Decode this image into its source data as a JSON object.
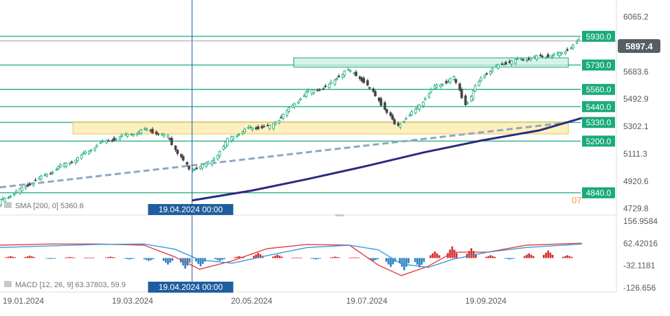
{
  "chart_data": [
    {
      "type": "line",
      "title": "",
      "y_axis": {
        "ticks": [
          "6065.2",
          "5683.6",
          "5492.9",
          "5302.1",
          "5111.3",
          "4920.6",
          "4729.8"
        ],
        "tick_values": [
          6065.2,
          5683.6,
          5492.9,
          5302.1,
          5111.3,
          4920.6,
          4729.8
        ],
        "ylim": [
          4690,
          6135
        ]
      },
      "x_axis": {
        "ticks": [
          "19.01.2024",
          "19.03.2024",
          "20.05.2024",
          "19.07.2024",
          "19.09.2024"
        ],
        "xlim": [
          "2024-01-10",
          "2024-11-26"
        ]
      },
      "current_price": {
        "label": "5897.4",
        "value": 5897.4,
        "color": "#555e66"
      },
      "levels": [
        {
          "label": "5930.0",
          "value": 5930.0
        },
        {
          "label": "5730.0",
          "value": 5730.0
        },
        {
          "label": "5560.0",
          "value": 5560.0
        },
        {
          "label": "5440.0",
          "value": 5440.0
        },
        {
          "label": "5330.0",
          "value": 5330.0
        },
        {
          "label": "5200.0",
          "value": 5200.0
        },
        {
          "label": "4840.0",
          "value": 4840.0
        }
      ],
      "level_prefix_text": "07",
      "level_color": "#1aaa7a",
      "zones": [
        {
          "name": "resistance-zone",
          "from": 5250,
          "to": 5335,
          "x_from": "2024-02-17",
          "x_to": "2024-11-01",
          "fill": "#fde9a8",
          "stroke": "#e5c35a"
        },
        {
          "name": "support-zone",
          "from": 5715,
          "to": 5780,
          "x_from": "2024-06-11",
          "x_to": "2024-11-01",
          "fill": "#c9efe0",
          "stroke": "#1aaa7a"
        }
      ],
      "trendline": {
        "from": {
          "x": "2024-01-10",
          "y": 4878
        },
        "to": {
          "x": "2024-11-01",
          "y": 5330
        },
        "color": "#8fa7c0"
      },
      "sma": {
        "label": "SMA [200, 0] 5360.6",
        "color": "#2b2a80",
        "x": [
          "2024-04-19",
          "2024-05-20",
          "2024-06-19",
          "2024-07-19",
          "2024-08-18",
          "2024-09-17",
          "2024-10-17",
          "2024-11-08"
        ],
        "y": [
          4787,
          4855,
          4938,
          5027,
          5122,
          5205,
          5275,
          5360.6
        ]
      },
      "price_series": {
        "name": "",
        "up_color": "#1aaa7a",
        "down_color": "#444444",
        "x": [
          "2024-01-10",
          "2024-01-19",
          "2024-01-31",
          "2024-02-10",
          "2024-02-22",
          "2024-03-03",
          "2024-03-19",
          "2024-03-28",
          "2024-04-08",
          "2024-04-19",
          "2024-04-30",
          "2024-05-10",
          "2024-05-20",
          "2024-05-31",
          "2024-06-10",
          "2024-06-19",
          "2024-06-30",
          "2024-07-10",
          "2024-07-19",
          "2024-07-27",
          "2024-08-05",
          "2024-08-15",
          "2024-08-25",
          "2024-09-04",
          "2024-09-10",
          "2024-09-19",
          "2024-09-29",
          "2024-10-09",
          "2024-10-20",
          "2024-10-30",
          "2024-11-08"
        ],
        "y": [
          4770,
          4840,
          4930,
          5010,
          5090,
          5180,
          5250,
          5280,
          5230,
          5000,
          5050,
          5220,
          5290,
          5300,
          5420,
          5540,
          5580,
          5700,
          5620,
          5480,
          5300,
          5420,
          5580,
          5640,
          5450,
          5660,
          5740,
          5770,
          5790,
          5810,
          5897.4
        ]
      },
      "crosshair": {
        "x": "2024-04-19",
        "label": "19.04.2024 00:00",
        "color": "#1f5e9e"
      }
    },
    {
      "type": "bar",
      "title": "",
      "indicator_label": "MACD [12, 26, 9] 63.37803,  59.9",
      "y_axis": {
        "ticks": [
          "156.9584",
          "62.42016",
          "-32.1181",
          "-126.656"
        ],
        "tick_values": [
          156.9584,
          62.42016,
          -32.1181,
          -126.656
        ],
        "ylim": [
          -142,
          175
        ]
      },
      "histogram_colors": {
        "positive": "#d42a2a",
        "negative": "#2a7fc1"
      },
      "histogram": {
        "x": [
          "2024-01-15",
          "2024-01-25",
          "2024-02-05",
          "2024-02-15",
          "2024-02-25",
          "2024-03-07",
          "2024-03-17",
          "2024-03-27",
          "2024-04-06",
          "2024-04-15",
          "2024-04-23",
          "2024-05-03",
          "2024-05-13",
          "2024-05-23",
          "2024-06-02",
          "2024-06-12",
          "2024-06-22",
          "2024-07-02",
          "2024-07-12",
          "2024-07-22",
          "2024-07-31",
          "2024-08-07",
          "2024-08-15",
          "2024-08-23",
          "2024-09-01",
          "2024-09-11",
          "2024-09-21",
          "2024-10-01",
          "2024-10-11",
          "2024-10-21",
          "2024-10-31"
        ],
        "values": [
          8,
          10,
          -4,
          5,
          2,
          6,
          -6,
          -12,
          -28,
          -45,
          -35,
          -12,
          8,
          22,
          14,
          2,
          -6,
          6,
          3,
          -12,
          -38,
          -52,
          -40,
          28,
          50,
          42,
          12,
          -6,
          20,
          32,
          12
        ]
      },
      "macd_line": {
        "name": "",
        "color": "#e2403f",
        "x": [
          "2024-01-10",
          "2024-02-05",
          "2024-03-01",
          "2024-03-25",
          "2024-04-10",
          "2024-04-23",
          "2024-05-10",
          "2024-05-28",
          "2024-06-18",
          "2024-07-10",
          "2024-07-25",
          "2024-08-06",
          "2024-08-20",
          "2024-09-02",
          "2024-09-20",
          "2024-10-10",
          "2024-11-08"
        ],
        "y": [
          55,
          60,
          60,
          55,
          5,
          -48,
          -12,
          40,
          58,
          55,
          -30,
          -75,
          -35,
          25,
          25,
          55,
          63.37803
        ]
      },
      "signal_line": {
        "name": "",
        "color": "#3a9ad9",
        "x": [
          "2024-01-10",
          "2024-02-05",
          "2024-03-01",
          "2024-03-25",
          "2024-04-10",
          "2024-04-23",
          "2024-05-10",
          "2024-05-28",
          "2024-06-18",
          "2024-07-10",
          "2024-07-25",
          "2024-08-06",
          "2024-08-20",
          "2024-09-02",
          "2024-09-20",
          "2024-10-10",
          "2024-11-08"
        ],
        "y": [
          45,
          52,
          58,
          60,
          38,
          -8,
          -22,
          10,
          45,
          55,
          35,
          -25,
          -40,
          -5,
          25,
          45,
          59.9
        ]
      },
      "crosshair": {
        "x": "2024-04-19",
        "label": "19.04.2024 00:00",
        "color": "#1f5e9e"
      }
    }
  ]
}
